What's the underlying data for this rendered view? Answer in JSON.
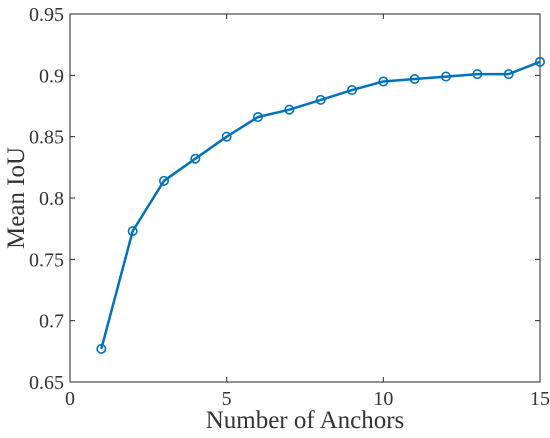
{
  "chart_data": {
    "type": "line",
    "xlabel": "Number of Anchors",
    "ylabel": "Mean IoU",
    "xlim": [
      0,
      15
    ],
    "ylim": [
      0.65,
      0.95
    ],
    "xticks": [
      0,
      5,
      10,
      15
    ],
    "xtick_labels": [
      "0",
      "5",
      "10",
      "15"
    ],
    "yticks": [
      0.65,
      0.7,
      0.75,
      0.8,
      0.85,
      0.9,
      0.95
    ],
    "ytick_labels": [
      "0.65",
      "0.7",
      "0.75",
      "0.8",
      "0.85",
      "0.9",
      "0.95"
    ],
    "grid": false,
    "legend": "none",
    "series": [
      {
        "color": "#0072BD",
        "marker": "circle",
        "x": [
          1,
          2,
          3,
          4,
          5,
          6,
          7,
          8,
          9,
          10,
          11,
          12,
          13,
          14,
          15
        ],
        "y": [
          0.677,
          0.773,
          0.814,
          0.832,
          0.85,
          0.866,
          0.872,
          0.88,
          0.888,
          0.895,
          0.897,
          0.899,
          0.901,
          0.901,
          0.911
        ]
      }
    ]
  }
}
